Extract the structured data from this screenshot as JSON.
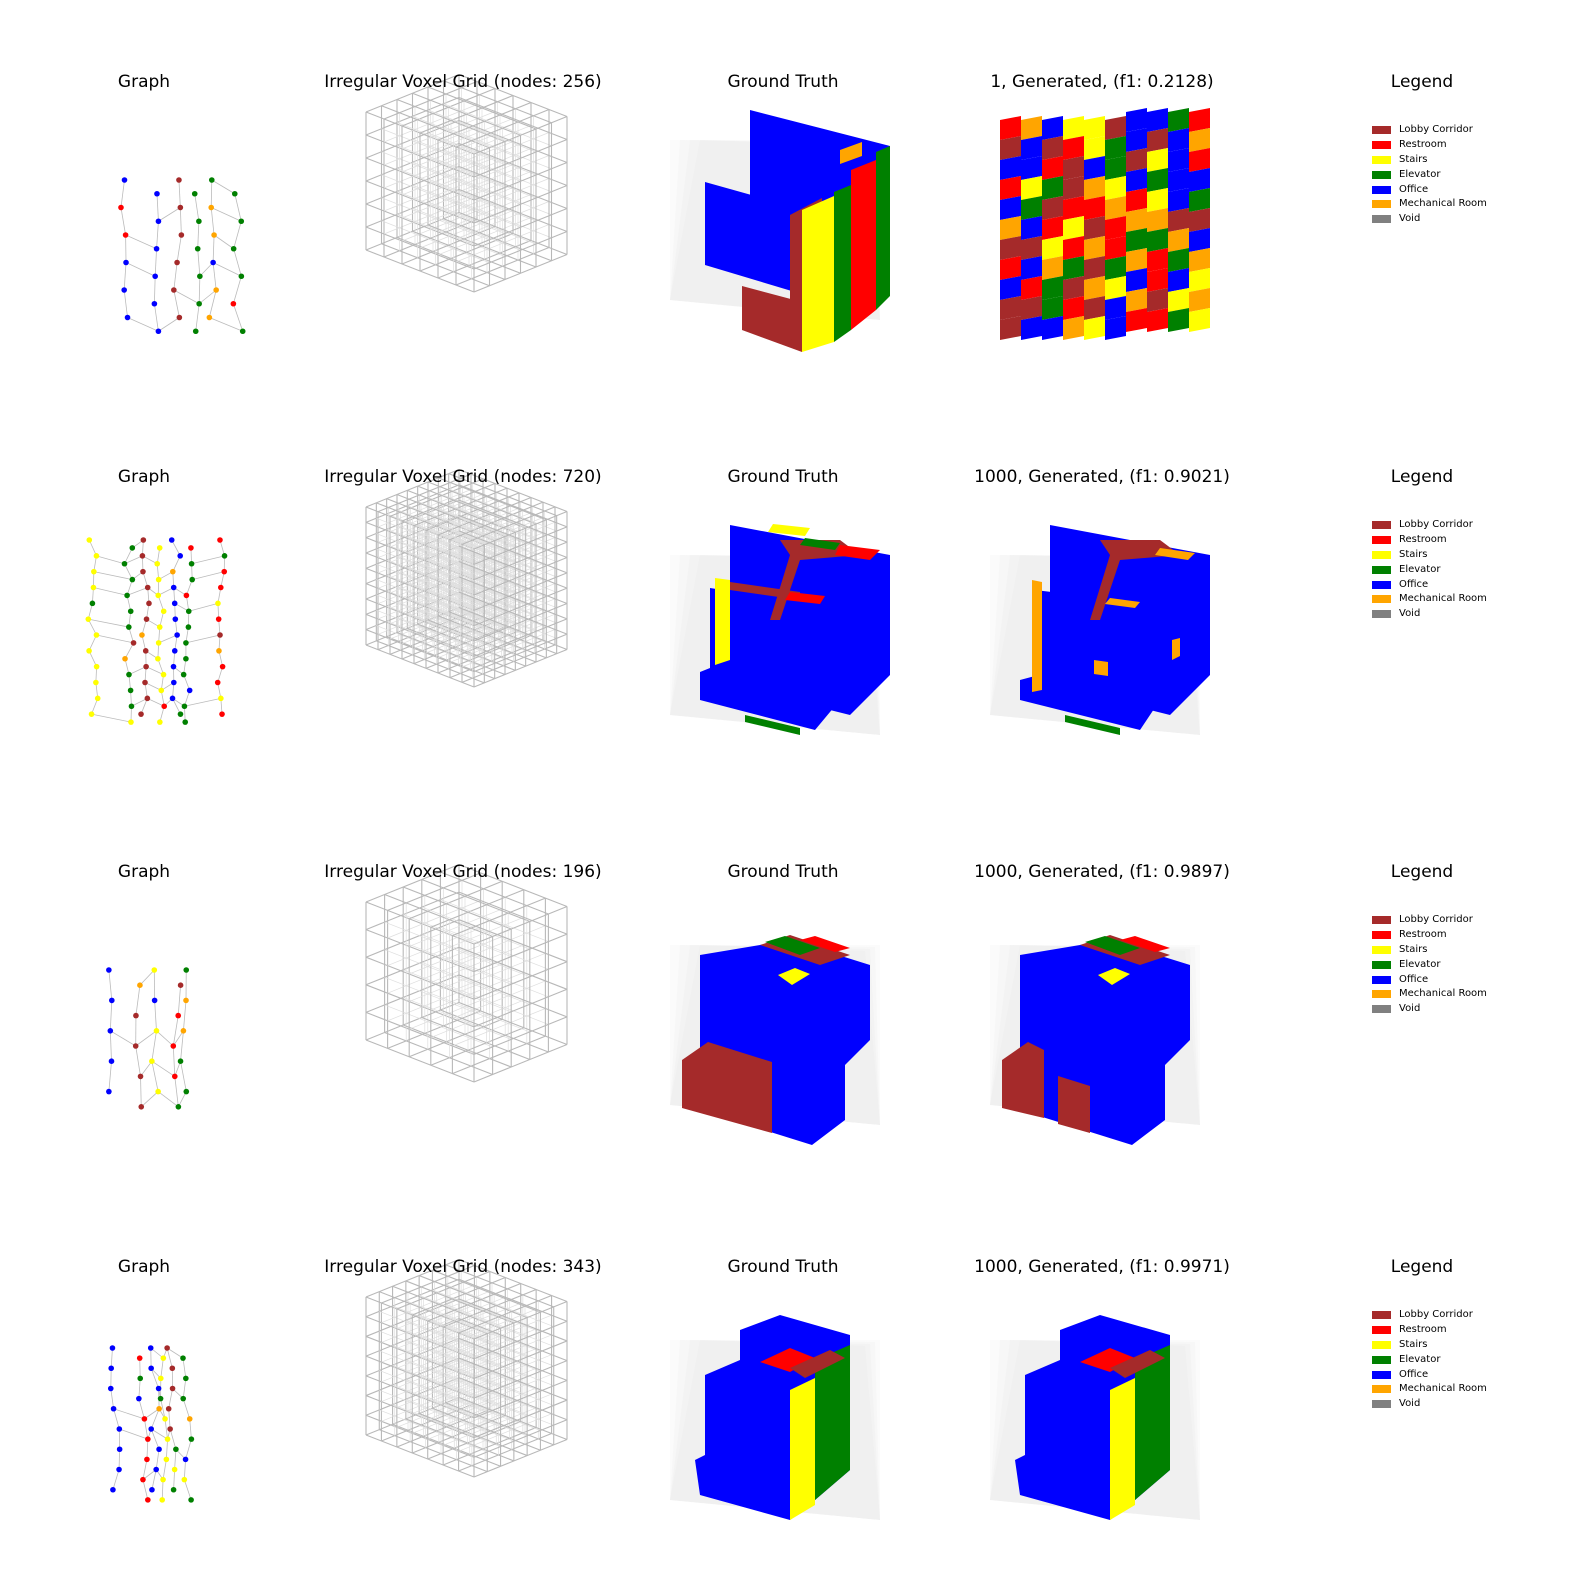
{
  "colors": {
    "Lobby Corridor": "#a52a2a",
    "Restroom": "#ff0000",
    "Stairs": "#ffff00",
    "Elevator": "#008000",
    "Office": "#0000ff",
    "Mechanical Room": "#ffa500",
    "Void": "#808080"
  },
  "legend_items": [
    "Lobby Corridor",
    "Restroom",
    "Stairs",
    "Elevator",
    "Office",
    "Mechanical Room",
    "Void"
  ],
  "rows": [
    {
      "graph_title": "Graph",
      "grid_title": "Irregular Voxel Grid (nodes: 256)",
      "gt_title": "Ground Truth",
      "gen_title": "1, Generated, (f1: 0.2128)",
      "legend_title": "Legend"
    },
    {
      "graph_title": "Graph",
      "grid_title": "Irregular Voxel Grid (nodes: 720)",
      "gt_title": "Ground Truth",
      "gen_title": "1000, Generated, (f1: 0.9021)",
      "legend_title": "Legend"
    },
    {
      "graph_title": "Graph",
      "grid_title": "Irregular Voxel Grid (nodes: 196)",
      "gt_title": "Ground Truth",
      "gen_title": "1000, Generated, (f1: 0.9897)",
      "legend_title": "Legend"
    },
    {
      "graph_title": "Graph",
      "grid_title": "Irregular Voxel Grid (nodes: 343)",
      "gt_title": "Ground Truth",
      "gen_title": "1000, Generated, (f1: 0.9971)",
      "legend_title": "Legend"
    }
  ]
}
